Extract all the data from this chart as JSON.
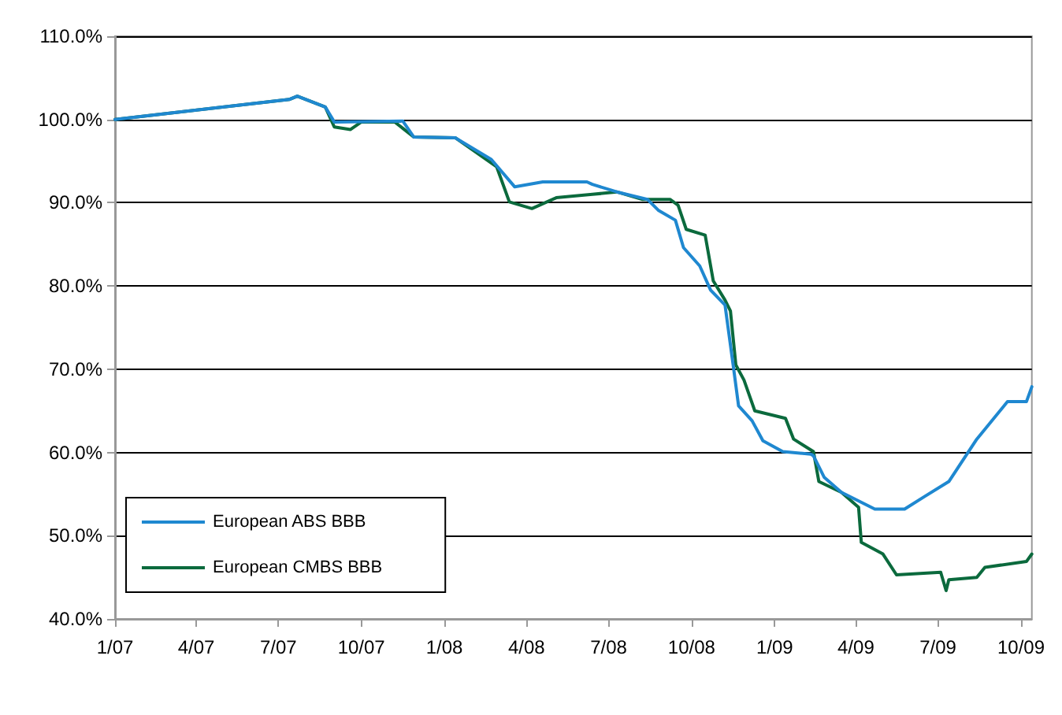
{
  "chart_data": {
    "type": "line",
    "xlim": [
      "2007-01-01",
      "2009-10-13"
    ],
    "ylim": [
      40,
      110
    ],
    "xticks": [
      {
        "value": "2007-01-01",
        "label": "1/07"
      },
      {
        "value": "2007-04-01",
        "label": "4/07"
      },
      {
        "value": "2007-07-01",
        "label": "7/07"
      },
      {
        "value": "2007-10-01",
        "label": "10/07"
      },
      {
        "value": "2008-01-01",
        "label": "1/08"
      },
      {
        "value": "2008-04-01",
        "label": "4/08"
      },
      {
        "value": "2008-07-01",
        "label": "7/08"
      },
      {
        "value": "2008-10-01",
        "label": "10/08"
      },
      {
        "value": "2009-01-01",
        "label": "1/09"
      },
      {
        "value": "2009-04-01",
        "label": "4/09"
      },
      {
        "value": "2009-07-01",
        "label": "7/09"
      },
      {
        "value": "2009-10-01",
        "label": "10/09"
      }
    ],
    "yticks": [
      {
        "value": 40,
        "label": "40.0%"
      },
      {
        "value": 50,
        "label": "50.0%"
      },
      {
        "value": 60,
        "label": "60.0%"
      },
      {
        "value": 70,
        "label": "70.0%"
      },
      {
        "value": 80,
        "label": "80.0%"
      },
      {
        "value": 90,
        "label": "90.0%"
      },
      {
        "value": 100,
        "label": "100.0%"
      },
      {
        "value": 110,
        "label": "110.0%"
      }
    ],
    "grid": "y",
    "legend": "bottom left",
    "marker": "none",
    "line_style": "solid",
    "series": [
      {
        "name": "European ABS BBB",
        "color": "#1f88d0",
        "x": [
          "2007-01-01",
          "2007-07-13",
          "2007-07-22",
          "2007-08-22",
          "2007-09-01",
          "2007-11-16",
          "2007-11-28",
          "2008-01-13",
          "2008-02-22",
          "2008-03-19",
          "2008-04-19",
          "2008-06-07",
          "2008-06-13",
          "2008-07-10",
          "2008-08-13",
          "2008-08-25",
          "2008-09-13",
          "2008-09-22",
          "2008-10-10",
          "2008-10-22",
          "2008-11-07",
          "2008-11-16",
          "2008-11-22",
          "2008-12-07",
          "2008-12-19",
          "2009-01-10",
          "2009-02-10",
          "2009-02-13",
          "2009-02-25",
          "2009-03-16",
          "2009-04-22",
          "2009-05-25",
          "2009-06-16",
          "2009-07-13",
          "2009-08-13",
          "2009-09-16",
          "2009-10-07",
          "2009-10-13"
        ],
        "values": [
          100,
          102.4,
          102.8,
          101.5,
          99.7,
          99.8,
          97.9,
          97.8,
          95.2,
          91.9,
          92.5,
          92.5,
          92.2,
          91.3,
          90.4,
          89.1,
          87.9,
          84.6,
          82.4,
          79.5,
          77.7,
          70.5,
          65.6,
          63.8,
          61.4,
          60.1,
          59.8,
          59.6,
          57.0,
          55.2,
          53.2,
          53.2,
          54.7,
          56.5,
          61.6,
          66.1,
          66.1,
          67.9
        ]
      },
      {
        "name": "European CMBS BBB",
        "color": "#0b6a3d",
        "x": [
          "2007-01-01",
          "2007-07-13",
          "2007-07-22",
          "2007-08-22",
          "2007-09-01",
          "2007-09-19",
          "2007-10-01",
          "2007-11-07",
          "2007-11-28",
          "2008-01-13",
          "2008-02-28",
          "2008-03-13",
          "2008-04-07",
          "2008-05-04",
          "2008-06-13",
          "2008-07-10",
          "2008-08-07",
          "2008-09-07",
          "2008-09-16",
          "2008-09-25",
          "2008-10-16",
          "2008-10-25",
          "2008-11-07",
          "2008-11-13",
          "2008-11-19",
          "2008-11-28",
          "2008-12-10",
          "2009-01-13",
          "2009-01-22",
          "2009-02-13",
          "2009-02-19",
          "2009-03-16",
          "2009-04-04",
          "2009-04-07",
          "2009-05-01",
          "2009-05-16",
          "2009-07-04",
          "2009-07-10",
          "2009-07-13",
          "2009-08-13",
          "2009-08-22",
          "2009-10-07",
          "2009-10-13"
        ],
        "values": [
          100,
          102.4,
          102.8,
          101.5,
          99.1,
          98.8,
          99.7,
          99.7,
          97.9,
          97.8,
          94.3,
          90.1,
          89.3,
          90.6,
          91.0,
          91.3,
          90.4,
          90.4,
          89.7,
          86.8,
          86.1,
          80.6,
          78.3,
          77.0,
          70.5,
          68.7,
          65.0,
          64.1,
          61.6,
          60.1,
          56.5,
          55.2,
          53.4,
          49.2,
          47.8,
          45.3,
          45.6,
          43.4,
          44.7,
          45.0,
          46.2,
          46.9,
          47.8
        ]
      }
    ]
  }
}
